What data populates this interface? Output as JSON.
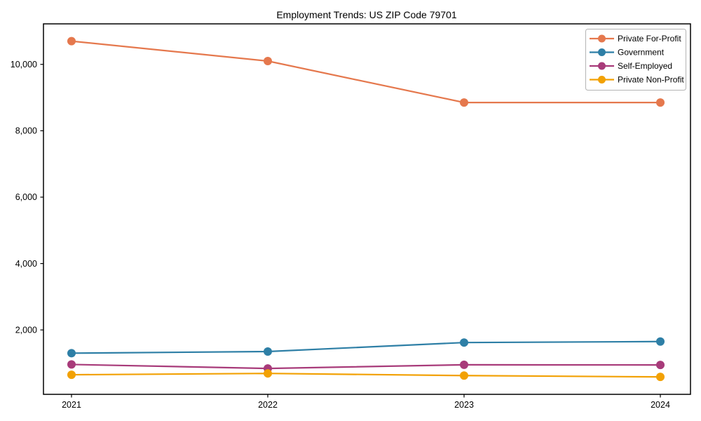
{
  "chart_data": {
    "type": "line",
    "title": "Employment Trends: US ZIP Code 79701",
    "xlabel": "",
    "ylabel": "",
    "categories": [
      "2021",
      "2022",
      "2023",
      "2024"
    ],
    "series": [
      {
        "name": "Private For-Profit",
        "color": "#e5784d",
        "values": [
          10700,
          10100,
          8850,
          8850
        ]
      },
      {
        "name": "Government",
        "color": "#2e7fa6",
        "values": [
          1300,
          1350,
          1620,
          1650
        ]
      },
      {
        "name": "Self-Employed",
        "color": "#a83b7a",
        "values": [
          960,
          840,
          950,
          945
        ]
      },
      {
        "name": "Private Non-Profit",
        "color": "#f2a104",
        "values": [
          650,
          690,
          625,
          585
        ]
      }
    ],
    "yticks": [
      2000,
      4000,
      6000,
      8000,
      10000
    ],
    "ytick_labels": [
      "2,000",
      "4,000",
      "6,000",
      "8,000",
      "10,000"
    ],
    "ylim": [
      60,
      11220
    ],
    "grid": false,
    "legend_position": "upper right",
    "background_color": "#ffffff",
    "spine_color": "#000000",
    "legend_border_color": "#b4b4b4"
  }
}
